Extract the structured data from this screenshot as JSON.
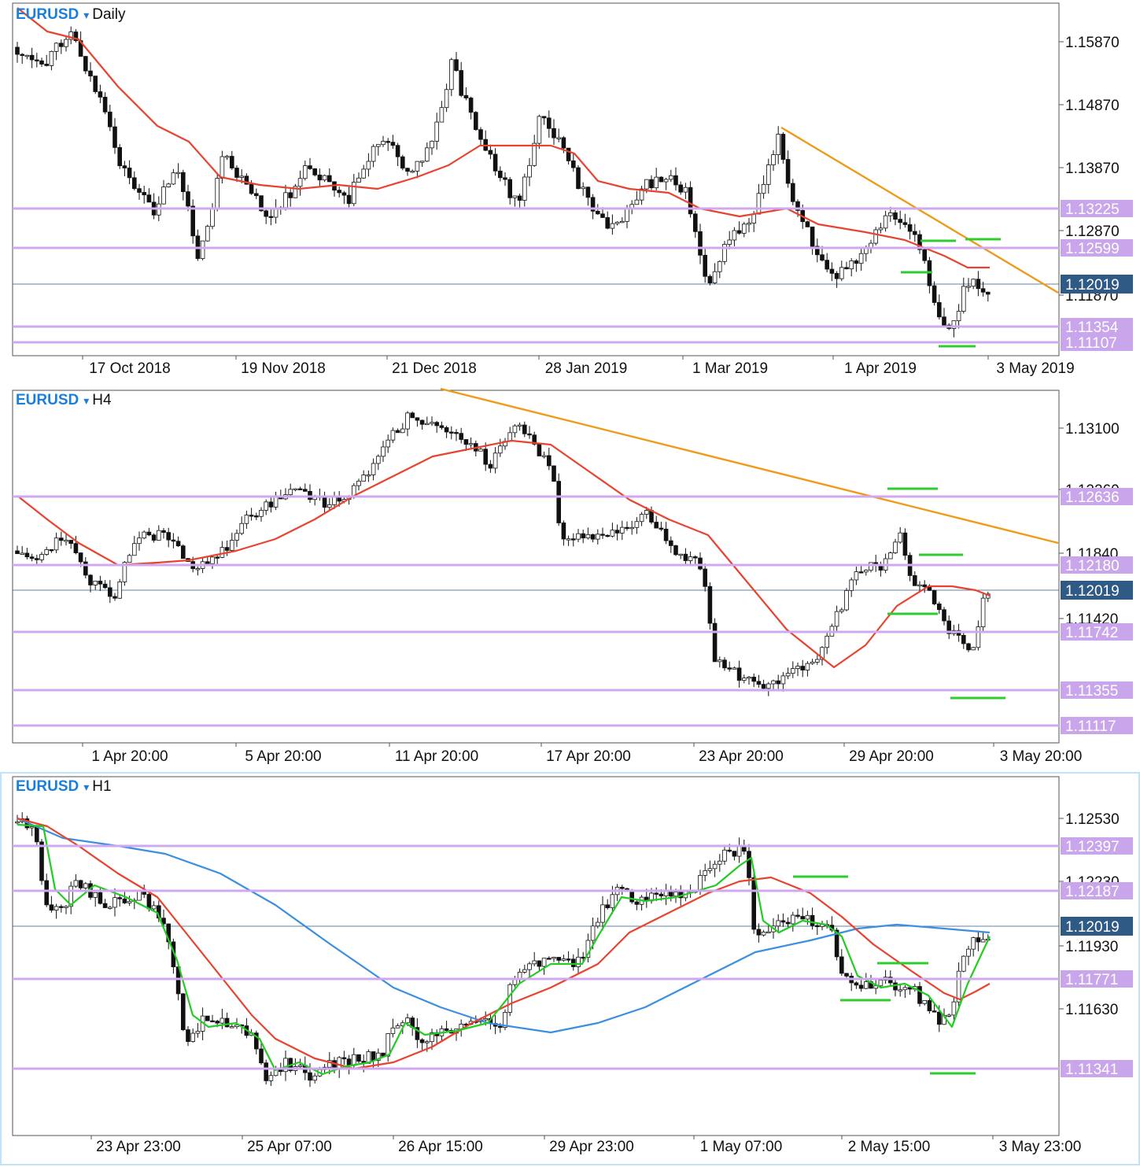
{
  "panels": [
    {
      "symbol": "EURUSD",
      "dropdown": "▾",
      "timeframe": "Daily",
      "price_labels": [
        "1.15870",
        "1.14870",
        "1.13870",
        "1.12870",
        "1.11870"
      ],
      "level_labels": [
        "1.13225",
        "1.12599",
        "1.11354",
        "1.11107"
      ],
      "current_price": "1.12019",
      "time_labels": [
        "17 Oct 2018",
        "19 Nov 2018",
        "21 Dec 2018",
        "28 Jan 2019",
        "1 Mar 2019",
        "1 Apr 2019",
        "3 May 2019"
      ]
    },
    {
      "symbol": "EURUSD",
      "dropdown": "▾",
      "timeframe": "H4",
      "price_labels": [
        "1.13100",
        "1.12260",
        "1.11840",
        "1.11420"
      ],
      "level_labels": [
        "1.12636",
        "1.12180",
        "1.11742",
        "1.11355",
        "1.11117"
      ],
      "current_price": "1.12019",
      "time_labels": [
        "1 Apr 20:00",
        "5 Apr 20:00",
        "11 Apr 20:00",
        "17 Apr 20:00",
        "23 Apr 20:00",
        "29 Apr 20:00",
        "3 May 20:00"
      ]
    },
    {
      "symbol": "EURUSD",
      "dropdown": "▾",
      "timeframe": "H1",
      "price_labels": [
        "1.12530",
        "1.12230",
        "1.11930",
        "1.11630"
      ],
      "level_labels": [
        "1.12397",
        "1.12187",
        "1.11771",
        "1.11341"
      ],
      "current_price": "1.12019",
      "time_labels": [
        "23 Apr 23:00",
        "25 Apr 07:00",
        "26 Apr 15:00",
        "29 Apr 23:00",
        "1 May 07:00",
        "2 May 15:00",
        "3 May 23:00"
      ]
    }
  ],
  "colors": {
    "level_line": "#cfa8f0",
    "level_label_bg": "#c9a6ec",
    "current_price_bg": "#305a86",
    "ma_red": "#e8432e",
    "ma_green": "#22cc22",
    "ma_blue": "#3a8fe0",
    "trendline": "#f09a1a",
    "marker": "#2ecc2e",
    "symbol_text": "#1a7fdc"
  }
}
